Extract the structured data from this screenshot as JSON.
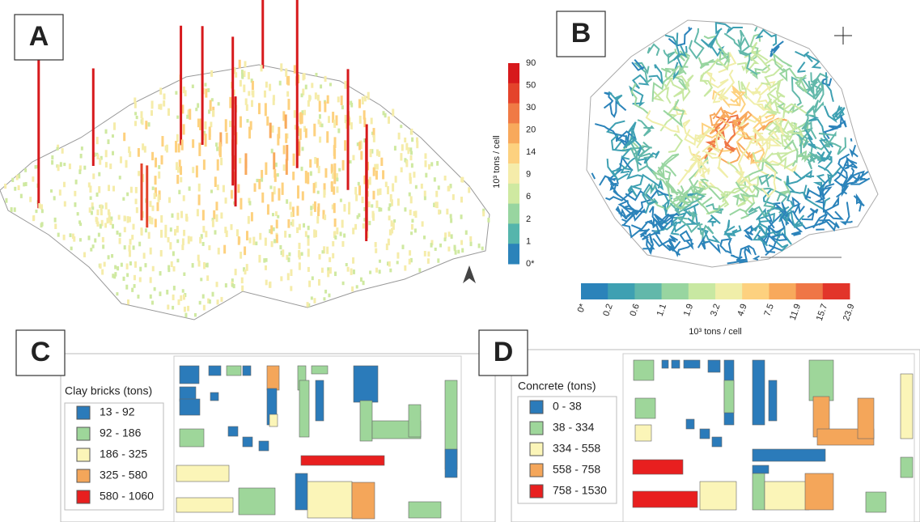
{
  "panels": [
    {
      "label": "A",
      "scale": {
        "title": "10³ tons / cell",
        "labels": [
          "90",
          "50",
          "30",
          "20",
          "14",
          "9",
          "6",
          "2",
          "1",
          "0*"
        ],
        "colors": [
          "#d7191c",
          "#e4432b",
          "#f07a45",
          "#f8a95c",
          "#fdd17f",
          "#f5ecaa",
          "#cfe9a1",
          "#98d5a0",
          "#55b5ac",
          "#2b83ba"
        ]
      }
    },
    {
      "label": "B",
      "scale": {
        "title": "10³ tons / cell",
        "labels": [
          "0*",
          "0.2",
          "0.6",
          "1.1",
          "1.9",
          "3.2",
          "4.9",
          "7.5",
          "11.9",
          "15.7",
          "23.9"
        ],
        "colors": [
          "#2b83ba",
          "#3ea0b2",
          "#62b8aa",
          "#98d5a0",
          "#c8e8a2",
          "#f0eea9",
          "#fdd17f",
          "#f8a95c",
          "#ef7646",
          "#e2352a"
        ]
      }
    },
    {
      "label": "C",
      "legend": {
        "title": "Clay bricks (tons)",
        "items": [
          {
            "label": "13 - 92",
            "color": "#2b7bba"
          },
          {
            "label": "92 - 186",
            "color": "#9ed69a"
          },
          {
            "label": "186 - 325",
            "color": "#fbf5b8"
          },
          {
            "label": "325 - 580",
            "color": "#f4a65a"
          },
          {
            "label": "580 - 1060",
            "color": "#e81f1f"
          }
        ]
      }
    },
    {
      "label": "D",
      "legend": {
        "title": "Concrete (tons)",
        "items": [
          {
            "label": "0 - 38",
            "color": "#2b7bba"
          },
          {
            "label": "38 - 334",
            "color": "#9ed69a"
          },
          {
            "label": "334 - 558",
            "color": "#fbf5b8"
          },
          {
            "label": "558 - 758",
            "color": "#f4a65a"
          },
          {
            "label": "758 - 1530",
            "color": "#e81f1f"
          }
        ]
      }
    }
  ]
}
